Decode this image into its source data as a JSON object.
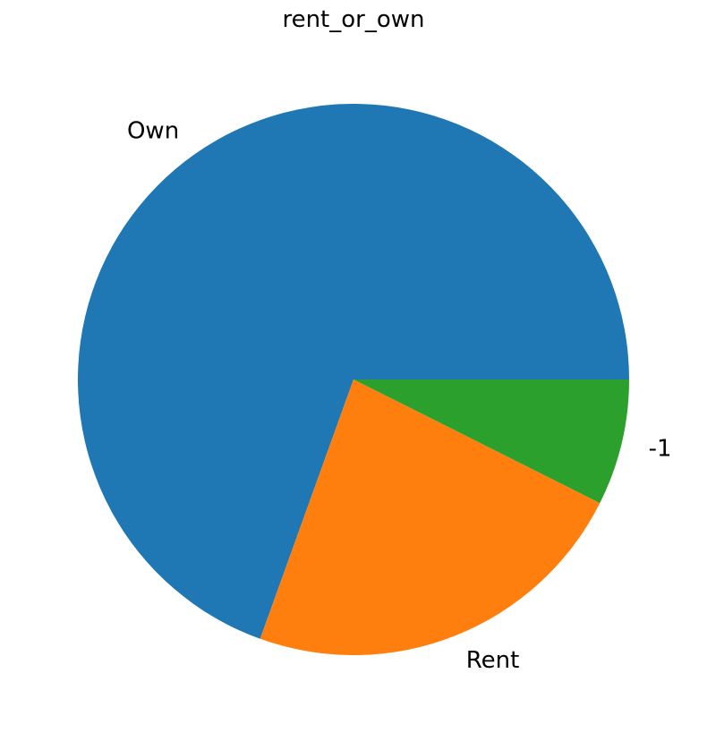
{
  "chart_data": {
    "type": "pie",
    "title": "rent_or_own",
    "start_angle_deg": 0,
    "direction": "counterclockwise",
    "slices": [
      {
        "label": "Own",
        "value": 69.5,
        "color": "#1f77b4"
      },
      {
        "label": "Rent",
        "value": 23.1,
        "color": "#ff7f0e"
      },
      {
        "label": "-1",
        "value": 7.4,
        "color": "#2ca02c"
      }
    ]
  }
}
